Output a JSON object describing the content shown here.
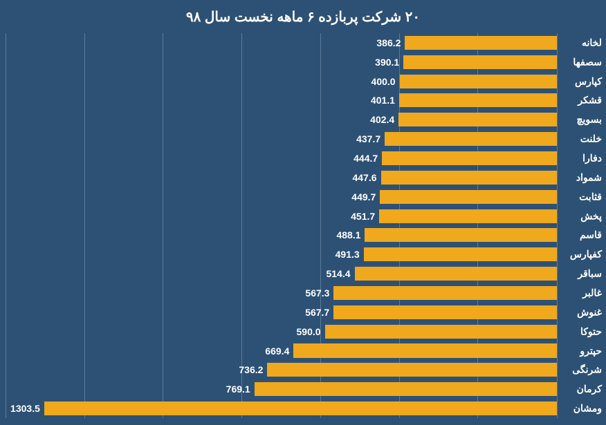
{
  "chart": {
    "type": "bar-horizontal",
    "title": "۲۰ شرکت پربازده ۶ ماهه نخست سال ۹۸",
    "title_color": "#ffffff",
    "title_fontsize": 20,
    "background_color": "#2d5175",
    "grid_color": "#5b7a99",
    "bar_color": "#f0a81d",
    "label_color": "#ffffff",
    "label_fontsize": 14,
    "value_fontsize": 14,
    "xlim": [
      0,
      1400
    ],
    "xtick_step": 200,
    "bar_gap_ratio": 0.28,
    "categories": [
      "لخانه",
      "سصفها",
      "کپارس",
      "قشکر",
      "بسویچ",
      "خلنت",
      "دفارا",
      "شمواد",
      "قثابت",
      "پخش",
      "قاسم",
      "کفپارس",
      "سباقر",
      "غالبر",
      "غنوش",
      "حتوکا",
      "حپترو",
      "شرنگی",
      "کرمان",
      "ومشان"
    ],
    "values": [
      386.2,
      390.1,
      400.0,
      401.1,
      402.4,
      437.7,
      444.7,
      447.6,
      449.7,
      451.7,
      488.1,
      491.3,
      514.4,
      567.3,
      567.7,
      590.0,
      669.4,
      736.2,
      769.1,
      1303.5
    ],
    "value_labels": [
      "386.2",
      "390.1",
      "400.0",
      "401.1",
      "402.4",
      "437.7",
      "444.7",
      "447.6",
      "449.7",
      "451.7",
      "488.1",
      "491.3",
      "514.4",
      "567.3",
      "567.7",
      "590.0",
      "669.4",
      "736.2",
      "769.1",
      "1303.5"
    ]
  }
}
